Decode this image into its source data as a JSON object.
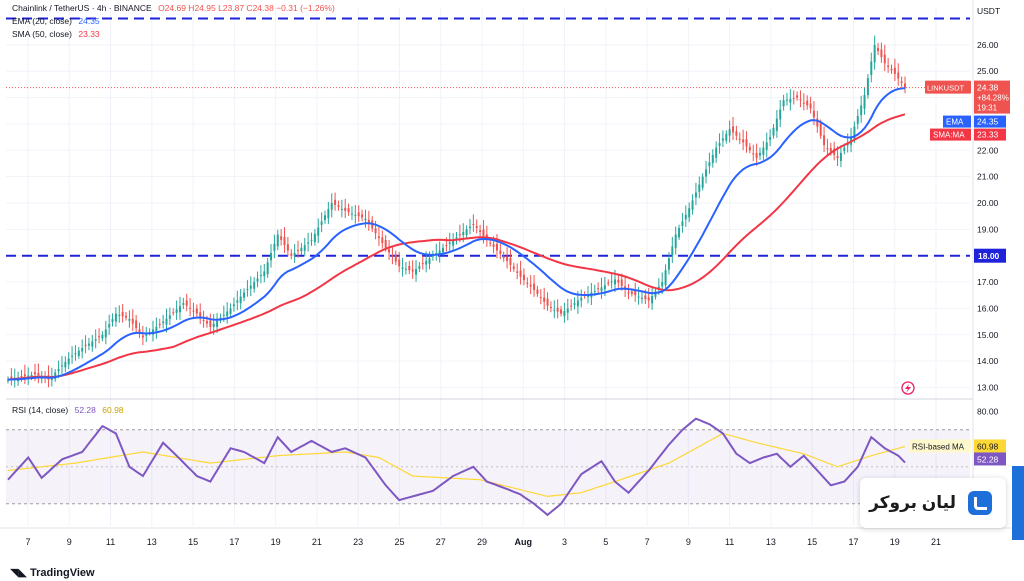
{
  "legend": {
    "symbol": "Chainlink / TetherUS · 4h · BINANCE",
    "ohlc": "O24.69 H24.95 L23.87 C24.38 −0.31 (−1.26%)",
    "ema_label": "EMA (20, close)",
    "ema_value": "24.35",
    "sma_label": "SMA (50, close)",
    "sma_value": "23.33",
    "rsi_label": "RSI (14, close)",
    "rsi_value": "52.28",
    "rsi_ma_value": "60.98"
  },
  "brand": {
    "name": "لیان بروکر",
    "platform": "TradingView"
  },
  "colors": {
    "up": "#26a69a",
    "down": "#ef5350",
    "ema": "#2962ff",
    "sma": "#f23645",
    "rsi": "#7e57c2",
    "rsi_ma": "#fdd835",
    "hline": "#1e22d9"
  },
  "chart_data": [
    {
      "type": "candlestick",
      "pair": "LINKUSDT",
      "currency_label": "USDT",
      "x_tick_labels": [
        "7",
        "9",
        "11",
        "13",
        "15",
        "17",
        "19",
        "21",
        "23",
        "25",
        "27",
        "29",
        "Aug",
        "3",
        "5",
        "7",
        "9",
        "11",
        "13",
        "15",
        "17",
        "19",
        "21"
      ],
      "y_ticks": [
        13.0,
        14.0,
        15.0,
        16.0,
        17.0,
        18.0,
        19.0,
        20.0,
        21.0,
        22.0,
        23.0,
        24.0,
        25.0,
        26.0
      ],
      "ylim": [
        12.6,
        27.4
      ],
      "horizontal_lines": [
        {
          "value": 27.0,
          "label": ""
        },
        {
          "value": 18.0,
          "label": "18.00"
        }
      ],
      "close_path": [
        [
          0,
          13.3
        ],
        [
          8,
          13.5
        ],
        [
          12,
          13.3
        ],
        [
          18,
          14.1
        ],
        [
          22,
          14.5
        ],
        [
          28,
          15.0
        ],
        [
          32,
          15.8
        ],
        [
          36,
          15.6
        ],
        [
          40,
          14.9
        ],
        [
          46,
          15.5
        ],
        [
          52,
          16.2
        ],
        [
          56,
          15.8
        ],
        [
          60,
          15.3
        ],
        [
          66,
          16.0
        ],
        [
          70,
          16.6
        ],
        [
          76,
          17.4
        ],
        [
          80,
          18.8
        ],
        [
          84,
          18.0
        ],
        [
          90,
          18.6
        ],
        [
          96,
          20.0
        ],
        [
          100,
          19.7
        ],
        [
          106,
          19.4
        ],
        [
          112,
          18.3
        ],
        [
          116,
          17.6
        ],
        [
          120,
          17.4
        ],
        [
          126,
          18.0
        ],
        [
          132,
          18.6
        ],
        [
          138,
          19.2
        ],
        [
          142,
          18.6
        ],
        [
          148,
          17.8
        ],
        [
          152,
          17.2
        ],
        [
          156,
          16.7
        ],
        [
          160,
          16.1
        ],
        [
          164,
          15.8
        ],
        [
          170,
          16.4
        ],
        [
          176,
          16.8
        ],
        [
          180,
          17.1
        ],
        [
          184,
          16.6
        ],
        [
          190,
          16.3
        ],
        [
          194,
          17.0
        ],
        [
          198,
          18.8
        ],
        [
          202,
          19.8
        ],
        [
          206,
          21.0
        ],
        [
          210,
          22.1
        ],
        [
          214,
          22.8
        ],
        [
          218,
          22.3
        ],
        [
          222,
          21.7
        ],
        [
          226,
          22.5
        ],
        [
          230,
          23.9
        ],
        [
          234,
          24.0
        ],
        [
          238,
          23.6
        ],
        [
          242,
          22.2
        ],
        [
          246,
          21.7
        ],
        [
          250,
          22.5
        ],
        [
          254,
          24.1
        ],
        [
          257,
          26.0
        ],
        [
          260,
          25.3
        ],
        [
          263,
          24.9
        ],
        [
          266,
          24.38
        ]
      ],
      "last_price": 24.38,
      "last_price_change": "+84.28%",
      "bar_countdown": "19:31",
      "ema": {
        "name": "EMA",
        "last": 24.35
      },
      "sma": {
        "name": "SMA:MA",
        "last": 23.33
      }
    },
    {
      "type": "line",
      "indicator": "RSI",
      "y_ticks": [
        80.0
      ],
      "ylim": [
        18,
        85
      ],
      "band": [
        30,
        70
      ],
      "rsi_path": [
        [
          0,
          43
        ],
        [
          6,
          55
        ],
        [
          10,
          44
        ],
        [
          16,
          54
        ],
        [
          22,
          58
        ],
        [
          28,
          72
        ],
        [
          32,
          68
        ],
        [
          36,
          50
        ],
        [
          40,
          45
        ],
        [
          46,
          63
        ],
        [
          50,
          56
        ],
        [
          56,
          45
        ],
        [
          60,
          42
        ],
        [
          66,
          60
        ],
        [
          70,
          58
        ],
        [
          76,
          52
        ],
        [
          80,
          66
        ],
        [
          84,
          58
        ],
        [
          90,
          64
        ],
        [
          96,
          58
        ],
        [
          100,
          60
        ],
        [
          106,
          55
        ],
        [
          112,
          40
        ],
        [
          116,
          32
        ],
        [
          120,
          34
        ],
        [
          126,
          37
        ],
        [
          132,
          45
        ],
        [
          138,
          50
        ],
        [
          142,
          42
        ],
        [
          148,
          38
        ],
        [
          152,
          35
        ],
        [
          156,
          30
        ],
        [
          160,
          24
        ],
        [
          164,
          30
        ],
        [
          170,
          46
        ],
        [
          176,
          53
        ],
        [
          180,
          42
        ],
        [
          184,
          36
        ],
        [
          190,
          48
        ],
        [
          196,
          62
        ],
        [
          200,
          70
        ],
        [
          204,
          76
        ],
        [
          208,
          73
        ],
        [
          212,
          68
        ],
        [
          216,
          57
        ],
        [
          220,
          52
        ],
        [
          224,
          55
        ],
        [
          228,
          57
        ],
        [
          232,
          50
        ],
        [
          236,
          56
        ],
        [
          240,
          48
        ],
        [
          244,
          40
        ],
        [
          248,
          42
        ],
        [
          252,
          50
        ],
        [
          256,
          66
        ],
        [
          260,
          60
        ],
        [
          264,
          56
        ],
        [
          266,
          52.28
        ]
      ],
      "rsi_ma_path": [
        [
          0,
          48
        ],
        [
          20,
          52
        ],
        [
          40,
          58
        ],
        [
          60,
          52
        ],
        [
          80,
          56
        ],
        [
          100,
          58
        ],
        [
          110,
          55
        ],
        [
          120,
          45
        ],
        [
          140,
          43
        ],
        [
          160,
          34
        ],
        [
          170,
          36
        ],
        [
          180,
          42
        ],
        [
          196,
          52
        ],
        [
          204,
          60
        ],
        [
          212,
          68
        ],
        [
          222,
          63
        ],
        [
          236,
          57
        ],
        [
          246,
          50
        ],
        [
          256,
          56
        ],
        [
          266,
          60.98
        ]
      ],
      "rsi_ma_label": "RSI-based MA"
    }
  ]
}
